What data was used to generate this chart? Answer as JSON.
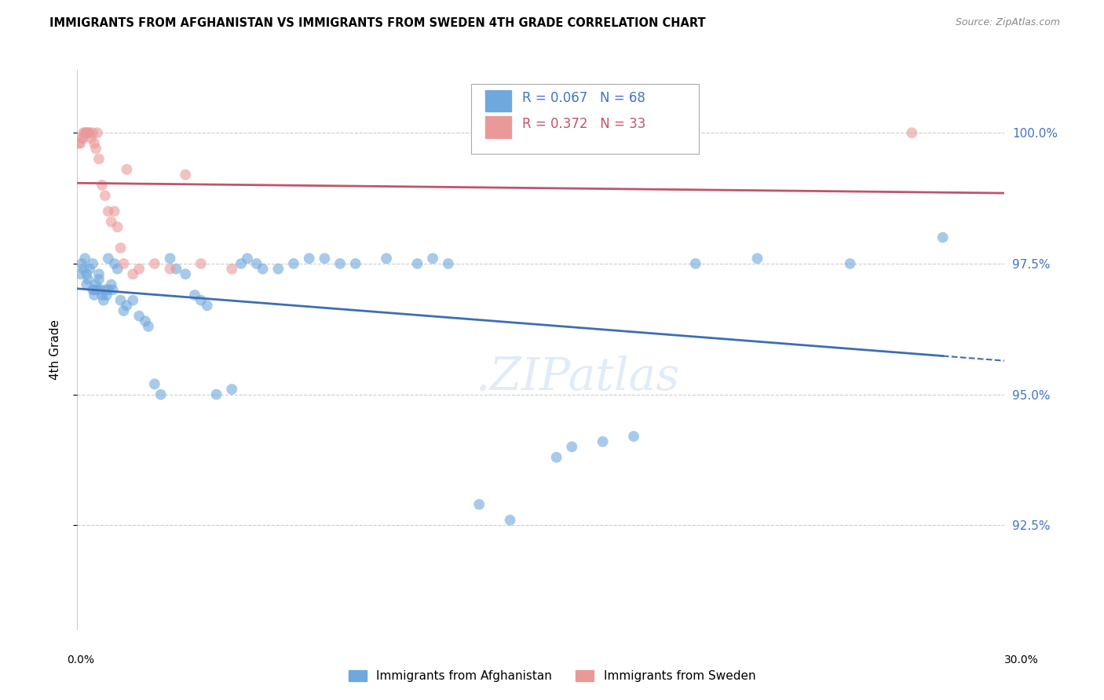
{
  "title": "IMMIGRANTS FROM AFGHANISTAN VS IMMIGRANTS FROM SWEDEN 4TH GRADE CORRELATION CHART",
  "source": "Source: ZipAtlas.com",
  "ylabel": "4th Grade",
  "xlim": [
    0.0,
    30.0
  ],
  "ylim": [
    90.5,
    101.2
  ],
  "legend_r1": "R = 0.067",
  "legend_n1": "N = 68",
  "legend_r2": "R = 0.372",
  "legend_n2": "N = 33",
  "legend_label1": "Immigrants from Afghanistan",
  "legend_label2": "Immigrants from Sweden",
  "blue_color": "#6fa8dc",
  "pink_color": "#ea9999",
  "blue_line_color": "#3d6eb4",
  "pink_line_color": "#c0556a",
  "ytick_vals": [
    92.5,
    95.0,
    97.5,
    100.0
  ],
  "ytick_labels": [
    "92.5%",
    "95.0%",
    "97.5%",
    "100.0%"
  ],
  "afghanistan_x": [
    0.1,
    0.15,
    0.2,
    0.25,
    0.3,
    0.3,
    0.35,
    0.4,
    0.5,
    0.5,
    0.55,
    0.55,
    0.6,
    0.65,
    0.7,
    0.7,
    0.75,
    0.8,
    0.85,
    0.9,
    0.95,
    1.0,
    1.0,
    1.1,
    1.15,
    1.2,
    1.3,
    1.4,
    1.5,
    1.6,
    1.8,
    2.0,
    2.2,
    2.3,
    2.5,
    2.7,
    3.0,
    3.2,
    3.5,
    3.8,
    4.0,
    4.2,
    4.5,
    5.0,
    5.3,
    5.5,
    5.8,
    6.0,
    6.5,
    7.0,
    7.5,
    8.0,
    8.5,
    9.0,
    10.0,
    11.0,
    11.5,
    12.0,
    13.0,
    14.0,
    15.5,
    16.0,
    17.0,
    18.0,
    20.0,
    22.0,
    25.0,
    28.0
  ],
  "afghanistan_y": [
    97.3,
    97.5,
    97.4,
    97.6,
    97.3,
    97.1,
    97.2,
    97.4,
    97.5,
    97.0,
    96.9,
    97.0,
    97.1,
    97.0,
    97.3,
    97.2,
    97.0,
    96.9,
    96.8,
    97.0,
    96.9,
    97.0,
    97.6,
    97.1,
    97.0,
    97.5,
    97.4,
    96.8,
    96.6,
    96.7,
    96.8,
    96.5,
    96.4,
    96.3,
    95.2,
    95.0,
    97.6,
    97.4,
    97.3,
    96.9,
    96.8,
    96.7,
    95.0,
    95.1,
    97.5,
    97.6,
    97.5,
    97.4,
    97.4,
    97.5,
    97.6,
    97.6,
    97.5,
    97.5,
    97.6,
    97.5,
    97.6,
    97.5,
    92.9,
    92.6,
    93.8,
    94.0,
    94.1,
    94.2,
    97.5,
    97.6,
    97.5,
    98.0
  ],
  "sweden_x": [
    0.05,
    0.1,
    0.15,
    0.2,
    0.2,
    0.25,
    0.3,
    0.3,
    0.35,
    0.4,
    0.45,
    0.5,
    0.55,
    0.6,
    0.65,
    0.7,
    0.8,
    0.9,
    1.0,
    1.1,
    1.2,
    1.3,
    1.4,
    1.5,
    1.6,
    1.8,
    2.0,
    2.5,
    3.0,
    3.5,
    4.0,
    5.0,
    27.0
  ],
  "sweden_y": [
    99.8,
    99.8,
    99.9,
    100.0,
    99.9,
    100.0,
    100.0,
    100.0,
    100.0,
    100.0,
    99.9,
    100.0,
    99.8,
    99.7,
    100.0,
    99.5,
    99.0,
    98.8,
    98.5,
    98.3,
    98.5,
    98.2,
    97.8,
    97.5,
    99.3,
    97.3,
    97.4,
    97.5,
    97.4,
    99.2,
    97.5,
    97.4,
    100.0
  ]
}
